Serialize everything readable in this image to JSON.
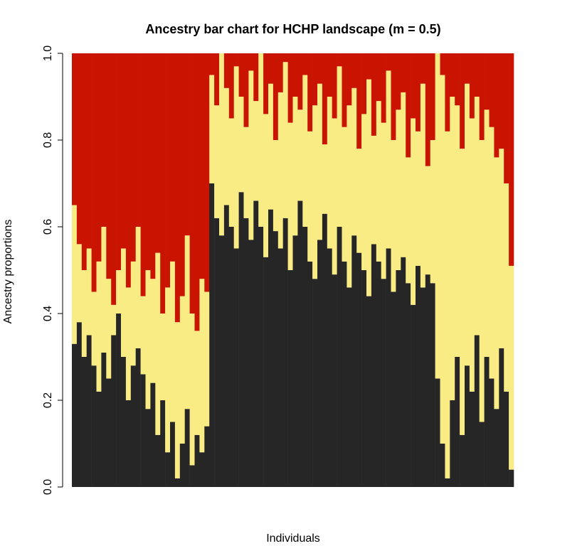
{
  "chart_data": {
    "type": "stacked_bar",
    "title": "Ancestry bar chart for HCHP landscape (m = 0.5)",
    "xlabel": "Individuals",
    "ylabel": "Ancestry proportions",
    "ylim": [
      0,
      1
    ],
    "yticks": [
      {
        "value": 0,
        "label": "0.0"
      },
      0.2,
      0.4,
      0.6,
      0.8,
      {
        "value": 1,
        "label": "1.0"
      }
    ],
    "series": [
      {
        "color": "#262626",
        "values": [
          0.33,
          0.38,
          0.3,
          0.35,
          0.28,
          0.22,
          0.31,
          0.25,
          0.35,
          0.4,
          0.3,
          0.2,
          0.28,
          0.32,
          0.26,
          0.18,
          0.24,
          0.12,
          0.2,
          0.08,
          0.15,
          0.02,
          0.1,
          0.18,
          0.05,
          0.12,
          0.08,
          0.14,
          0.7,
          0.62,
          0.58,
          0.65,
          0.6,
          0.55,
          0.68,
          0.62,
          0.57,
          0.66,
          0.6,
          0.53,
          0.64,
          0.59,
          0.55,
          0.62,
          0.5,
          0.58,
          0.66,
          0.6,
          0.52,
          0.48,
          0.57,
          0.63,
          0.55,
          0.49,
          0.6,
          0.52,
          0.46,
          0.58,
          0.54,
          0.5,
          0.44,
          0.56,
          0.52,
          0.48,
          0.55,
          0.45,
          0.5,
          0.53,
          0.47,
          0.42,
          0.51,
          0.46,
          0.49,
          0.47,
          0.25,
          0.1,
          0.02,
          0.2,
          0.3,
          0.12,
          0.28,
          0.22,
          0.35,
          0.15,
          0.3,
          0.25,
          0.18,
          0.32,
          0.22,
          0.04
        ]
      },
      {
        "color": "#F9EC85",
        "values": [
          0.32,
          0.18,
          0.2,
          0.2,
          0.17,
          0.3,
          0.29,
          0.23,
          0.07,
          0.1,
          0.25,
          0.26,
          0.24,
          0.28,
          0.18,
          0.32,
          0.24,
          0.42,
          0.2,
          0.38,
          0.37,
          0.36,
          0.34,
          0.4,
          0.35,
          0.24,
          0.4,
          0.31,
          0.25,
          0.26,
          0.42,
          0.27,
          0.25,
          0.42,
          0.22,
          0.21,
          0.39,
          0.23,
          0.4,
          0.33,
          0.29,
          0.21,
          0.36,
          0.36,
          0.34,
          0.32,
          0.21,
          0.35,
          0.3,
          0.4,
          0.36,
          0.16,
          0.35,
          0.36,
          0.37,
          0.31,
          0.42,
          0.34,
          0.24,
          0.36,
          0.5,
          0.25,
          0.37,
          0.36,
          0.41,
          0.35,
          0.37,
          0.38,
          0.29,
          0.43,
          0.31,
          0.47,
          0.25,
          0.33,
          0.75,
          0.85,
          0.8,
          0.7,
          0.58,
          0.66,
          0.65,
          0.63,
          0.55,
          0.65,
          0.57,
          0.58,
          0.58,
          0.46,
          0.48,
          0.47
        ]
      },
      {
        "color": "#C81400",
        "values": [
          0.35,
          0.44,
          0.5,
          0.45,
          0.55,
          0.48,
          0.4,
          0.52,
          0.58,
          0.5,
          0.45,
          0.54,
          0.48,
          0.4,
          0.56,
          0.5,
          0.52,
          0.46,
          0.6,
          0.54,
          0.48,
          0.62,
          0.56,
          0.42,
          0.6,
          0.64,
          0.52,
          0.55,
          0.05,
          0.12,
          0,
          0.08,
          0.15,
          0.03,
          0.1,
          0.17,
          0.04,
          0.11,
          0,
          0.14,
          0.07,
          0.2,
          0.09,
          0.02,
          0.16,
          0.1,
          0.13,
          0.05,
          0.18,
          0.12,
          0.07,
          0.21,
          0.1,
          0.15,
          0.03,
          0.17,
          0.12,
          0.08,
          0.22,
          0.14,
          0.06,
          0.19,
          0.11,
          0.16,
          0.04,
          0.2,
          0.13,
          0.09,
          0.24,
          0.15,
          0.18,
          0.07,
          0.26,
          0.2,
          0,
          0.05,
          0.18,
          0.1,
          0.12,
          0.22,
          0.07,
          0.15,
          0.1,
          0.2,
          0.13,
          0.17,
          0.24,
          0.22,
          0.3,
          0.49
        ]
      }
    ]
  }
}
